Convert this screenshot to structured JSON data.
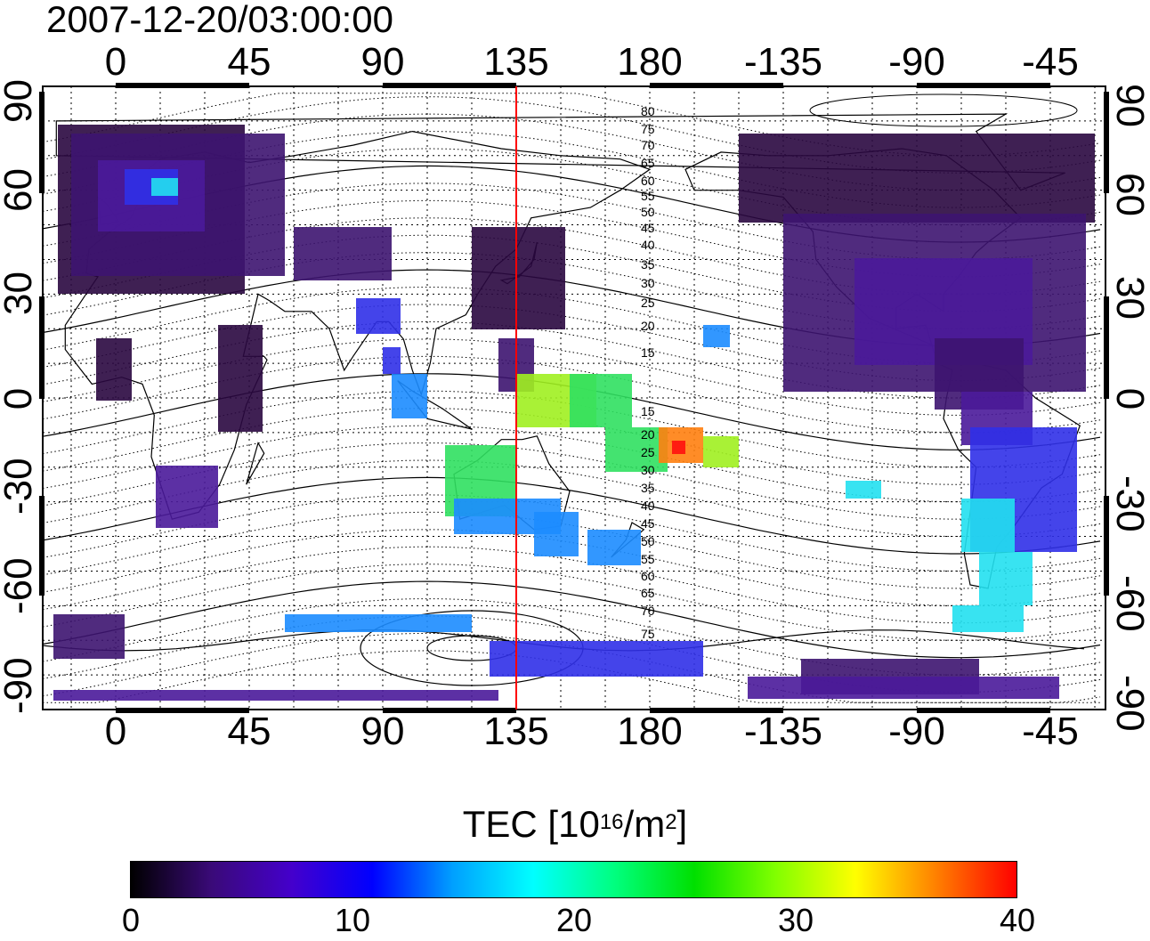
{
  "title": "2007-12-20/03:00:00",
  "map": {
    "longitude_labels": [
      "0",
      "45",
      "90",
      "135",
      "180",
      "-135",
      "-90",
      "-45"
    ],
    "latitude_labels_left": [
      "90",
      "60",
      "30",
      "0",
      "-30",
      "-60",
      "-90"
    ],
    "latitude_labels_right": [
      "90",
      "60",
      "30",
      "0",
      "-30",
      "-60",
      "-90"
    ],
    "magnetic_latitude_labels": [
      "80",
      "75",
      "70",
      "65",
      "60",
      "55",
      "50",
      "45",
      "40",
      "35",
      "30",
      "25",
      "20",
      "15",
      "15",
      "20",
      "25",
      "30",
      "35",
      "40",
      "45",
      "50",
      "55",
      "60",
      "65",
      "70",
      "75"
    ],
    "meridian_marker_longitude": 135,
    "meridian_marker_color": "#ff0000"
  },
  "colorbar": {
    "title_prefix": "TEC  [10",
    "title_exp1": "16",
    "title_mid": "/m",
    "title_exp2": "2",
    "title_suffix": "]",
    "ticks": [
      "0",
      "10",
      "20",
      "30",
      "40"
    ],
    "min": 0,
    "max": 40,
    "colors": [
      "#000000",
      "#3a0a78",
      "#4400cc",
      "#0000ff",
      "#00a0ff",
      "#00ffff",
      "#00ff80",
      "#00e000",
      "#80ff00",
      "#ffff00",
      "#ff8000",
      "#ff0000"
    ]
  }
}
